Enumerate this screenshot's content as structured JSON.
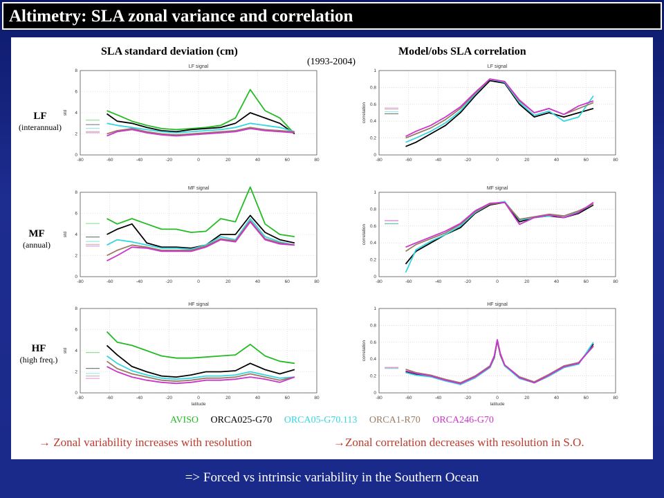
{
  "title": "Altimetry: SLA zonal variance and correlation",
  "left_title": "SLA standard deviation (cm)",
  "right_title": "Model/obs SLA correlation",
  "period": "(1993-2004)",
  "rows": [
    {
      "label": "LF",
      "sub": "(interannual)"
    },
    {
      "label": "MF",
      "sub": "(annual)"
    },
    {
      "label": "HF",
      "sub": "(high freq.)"
    }
  ],
  "legend": [
    {
      "name": "AVISO",
      "color": "#22bb22"
    },
    {
      "name": "ORCA025-G70",
      "color": "#000000"
    },
    {
      "name": "ORCA05-G70.113",
      "color": "#33d6e0"
    },
    {
      "name": "ORCA1-R70",
      "color": "#9a7b62"
    },
    {
      "name": "ORCA246-G70",
      "color": "#cc33cc"
    }
  ],
  "note_left": "→ Zonal variability increases with resolution",
  "note_right": "→Zonal correlation decreases with resolution in S.O.",
  "conclusion": "=> Forced vs intrinsic variability in the Southern Ocean",
  "chart_data": [
    {
      "type": "line",
      "title": "LF signal",
      "xlabel": "",
      "ylabel": "std",
      "xlim": [
        -80,
        80
      ],
      "ylim": [
        0,
        8
      ],
      "xticks": [
        -80,
        -60,
        -40,
        -20,
        0,
        20,
        40,
        60,
        80
      ],
      "yticks": [
        0,
        2,
        4,
        6,
        8
      ],
      "grid": true,
      "x": [
        -62,
        -55,
        -45,
        -35,
        -25,
        -15,
        -5,
        5,
        15,
        25,
        35,
        45,
        55,
        65
      ],
      "series": [
        {
          "name": "AVISO",
          "values": [
            4.2,
            3.8,
            3.2,
            2.8,
            2.5,
            2.4,
            2.5,
            2.6,
            2.8,
            3.5,
            6.2,
            4.2,
            3.5,
            2.0
          ]
        },
        {
          "name": "ORCA025-G70",
          "values": [
            3.9,
            3.2,
            3.0,
            2.6,
            2.3,
            2.2,
            2.4,
            2.5,
            2.6,
            3.0,
            4.0,
            3.5,
            3.0,
            2.0
          ]
        },
        {
          "name": "ORCA05-G70.113",
          "values": [
            3.0,
            2.8,
            2.6,
            2.4,
            2.2,
            2.1,
            2.2,
            2.3,
            2.4,
            2.6,
            3.0,
            2.8,
            2.6,
            2.2
          ]
        },
        {
          "name": "ORCA1-R70",
          "values": [
            2.0,
            2.3,
            2.5,
            2.2,
            2.0,
            1.9,
            2.0,
            2.1,
            2.2,
            2.3,
            2.6,
            2.4,
            2.3,
            2.2
          ]
        },
        {
          "name": "ORCA246-G70",
          "values": [
            1.8,
            2.2,
            2.4,
            2.1,
            1.9,
            1.8,
            1.9,
            2.0,
            2.1,
            2.2,
            2.5,
            2.3,
            2.2,
            2.1
          ]
        }
      ]
    },
    {
      "type": "line",
      "title": "LF signal",
      "xlabel": "",
      "ylabel": "correlation",
      "xlim": [
        -80,
        80
      ],
      "ylim": [
        0,
        1
      ],
      "xticks": [
        -80,
        -60,
        -40,
        -20,
        0,
        20,
        40,
        60,
        80
      ],
      "yticks": [
        0,
        0.2,
        0.4,
        0.6,
        0.8,
        1
      ],
      "grid": true,
      "x": [
        -62,
        -55,
        -45,
        -35,
        -25,
        -15,
        -5,
        5,
        15,
        25,
        35,
        45,
        55,
        65
      ],
      "series": [
        {
          "name": "ORCA025-G70",
          "values": [
            0.1,
            0.15,
            0.25,
            0.35,
            0.5,
            0.7,
            0.88,
            0.85,
            0.6,
            0.45,
            0.5,
            0.45,
            0.5,
            0.55
          ]
        },
        {
          "name": "ORCA05-G70.113",
          "values": [
            0.15,
            0.2,
            0.28,
            0.38,
            0.52,
            0.72,
            0.9,
            0.86,
            0.62,
            0.47,
            0.52,
            0.4,
            0.45,
            0.7
          ]
        },
        {
          "name": "ORCA1-R70",
          "values": [
            0.2,
            0.25,
            0.32,
            0.42,
            0.55,
            0.73,
            0.9,
            0.87,
            0.64,
            0.5,
            0.55,
            0.48,
            0.55,
            0.62
          ]
        },
        {
          "name": "ORCA246-G70",
          "values": [
            0.22,
            0.28,
            0.35,
            0.45,
            0.57,
            0.74,
            0.9,
            0.87,
            0.65,
            0.5,
            0.55,
            0.48,
            0.58,
            0.64
          ]
        }
      ]
    },
    {
      "type": "line",
      "title": "MF signal",
      "xlabel": "",
      "ylabel": "std",
      "xlim": [
        -80,
        80
      ],
      "ylim": [
        0,
        8
      ],
      "xticks": [
        -80,
        -60,
        -40,
        -20,
        0,
        20,
        40,
        60,
        80
      ],
      "yticks": [
        0,
        2,
        4,
        6,
        8
      ],
      "grid": true,
      "x": [
        -62,
        -55,
        -45,
        -35,
        -25,
        -15,
        -5,
        5,
        15,
        25,
        35,
        45,
        55,
        65
      ],
      "series": [
        {
          "name": "AVISO",
          "values": [
            5.5,
            5.0,
            5.5,
            5.0,
            4.5,
            4.5,
            4.2,
            4.3,
            5.5,
            5.2,
            8.5,
            5.0,
            4.0,
            3.8
          ]
        },
        {
          "name": "ORCA025-G70",
          "values": [
            4.0,
            4.5,
            5.0,
            3.2,
            2.8,
            2.8,
            2.7,
            3.0,
            4.0,
            4.0,
            5.8,
            4.2,
            3.5,
            3.2
          ]
        },
        {
          "name": "ORCA05-G70.113",
          "values": [
            3.0,
            3.5,
            3.3,
            3.0,
            2.7,
            2.7,
            2.6,
            3.0,
            3.8,
            3.5,
            5.5,
            3.8,
            3.3,
            3.0
          ]
        },
        {
          "name": "ORCA1-R70",
          "values": [
            2.0,
            2.5,
            3.0,
            2.8,
            2.5,
            2.5,
            2.5,
            2.9,
            3.6,
            3.4,
            5.3,
            3.6,
            3.2,
            3.0
          ]
        },
        {
          "name": "ORCA246-G70",
          "values": [
            1.5,
            2.0,
            2.8,
            2.7,
            2.4,
            2.4,
            2.4,
            2.8,
            3.5,
            3.3,
            5.2,
            3.5,
            3.1,
            3.0
          ]
        }
      ]
    },
    {
      "type": "line",
      "title": "MF signal",
      "xlabel": "",
      "ylabel": "correlation",
      "xlim": [
        -80,
        80
      ],
      "ylim": [
        0,
        1
      ],
      "xticks": [
        -80,
        -60,
        -40,
        -20,
        0,
        20,
        40,
        60,
        80
      ],
      "yticks": [
        0,
        0.2,
        0.4,
        0.6,
        0.8,
        1
      ],
      "grid": true,
      "x": [
        -62,
        -55,
        -45,
        -35,
        -25,
        -15,
        -5,
        5,
        15,
        25,
        35,
        45,
        55,
        65
      ],
      "series": [
        {
          "name": "ORCA025-G70",
          "values": [
            0.15,
            0.3,
            0.4,
            0.5,
            0.58,
            0.75,
            0.85,
            0.88,
            0.65,
            0.7,
            0.72,
            0.7,
            0.75,
            0.85
          ]
        },
        {
          "name": "ORCA05-G70.113",
          "values": [
            0.05,
            0.32,
            0.42,
            0.5,
            0.6,
            0.76,
            0.86,
            0.89,
            0.67,
            0.7,
            0.72,
            0.72,
            0.77,
            0.86
          ]
        },
        {
          "name": "ORCA1-R70",
          "values": [
            0.3,
            0.38,
            0.45,
            0.52,
            0.62,
            0.77,
            0.86,
            0.88,
            0.68,
            0.71,
            0.74,
            0.72,
            0.78,
            0.86
          ]
        },
        {
          "name": "ORCA246-G70",
          "values": [
            0.35,
            0.4,
            0.47,
            0.54,
            0.63,
            0.78,
            0.87,
            0.88,
            0.62,
            0.7,
            0.73,
            0.7,
            0.76,
            0.88
          ]
        }
      ]
    },
    {
      "type": "line",
      "title": "HF signal",
      "xlabel": "latitude",
      "ylabel": "std",
      "xlim": [
        -80,
        80
      ],
      "ylim": [
        0,
        8
      ],
      "xticks": [
        -80,
        -60,
        -40,
        -20,
        0,
        20,
        40,
        60,
        80
      ],
      "yticks": [
        0,
        2,
        4,
        6,
        8
      ],
      "grid": true,
      "x": [
        -62,
        -55,
        -45,
        -35,
        -25,
        -15,
        -5,
        5,
        15,
        25,
        35,
        45,
        55,
        65
      ],
      "series": [
        {
          "name": "AVISO",
          "values": [
            5.8,
            4.8,
            4.5,
            4.0,
            3.5,
            3.3,
            3.3,
            3.4,
            3.5,
            3.6,
            4.6,
            3.5,
            3.0,
            2.8
          ]
        },
        {
          "name": "ORCA025-G70",
          "values": [
            4.5,
            3.6,
            2.5,
            2.0,
            1.6,
            1.5,
            1.7,
            2.0,
            2.0,
            2.1,
            2.8,
            2.2,
            1.8,
            2.2
          ]
        },
        {
          "name": "ORCA05-G70.113",
          "values": [
            3.5,
            2.8,
            2.1,
            1.7,
            1.4,
            1.3,
            1.4,
            1.6,
            1.6,
            1.7,
            2.0,
            1.7,
            1.4,
            1.5
          ]
        },
        {
          "name": "ORCA1-R70",
          "values": [
            3.0,
            2.3,
            1.8,
            1.5,
            1.2,
            1.1,
            1.2,
            1.4,
            1.4,
            1.5,
            1.8,
            1.5,
            1.2,
            1.5
          ]
        },
        {
          "name": "ORCA246-G70",
          "values": [
            2.5,
            2.0,
            1.5,
            1.2,
            1.0,
            0.9,
            1.0,
            1.2,
            1.2,
            1.3,
            1.5,
            1.3,
            1.0,
            1.5
          ]
        }
      ]
    },
    {
      "type": "line",
      "title": "HF signal",
      "xlabel": "latitude",
      "ylabel": "correlation",
      "xlim": [
        -80,
        80
      ],
      "ylim": [
        0,
        1
      ],
      "xticks": [
        -80,
        -60,
        -40,
        -20,
        0,
        20,
        40,
        60,
        80
      ],
      "yticks": [
        0,
        0.2,
        0.4,
        0.6,
        0.8,
        1
      ],
      "grid": true,
      "x": [
        -62,
        -55,
        -45,
        -35,
        -25,
        -15,
        -5,
        -2,
        0,
        2,
        5,
        15,
        25,
        35,
        45,
        55,
        65
      ],
      "series": [
        {
          "name": "ORCA025-G70",
          "values": [
            0.25,
            0.22,
            0.2,
            0.15,
            0.1,
            0.18,
            0.3,
            0.42,
            0.62,
            0.45,
            0.32,
            0.18,
            0.12,
            0.2,
            0.3,
            0.35,
            0.58
          ]
        },
        {
          "name": "ORCA05-G70.113",
          "values": [
            0.24,
            0.21,
            0.19,
            0.14,
            0.1,
            0.18,
            0.3,
            0.43,
            0.63,
            0.46,
            0.32,
            0.17,
            0.12,
            0.2,
            0.3,
            0.34,
            0.6
          ]
        },
        {
          "name": "ORCA1-R70",
          "values": [
            0.28,
            0.24,
            0.21,
            0.16,
            0.12,
            0.2,
            0.32,
            0.44,
            0.62,
            0.46,
            0.33,
            0.19,
            0.13,
            0.22,
            0.32,
            0.36,
            0.55
          ]
        },
        {
          "name": "ORCA246-G70",
          "values": [
            0.26,
            0.23,
            0.2,
            0.15,
            0.11,
            0.19,
            0.31,
            0.44,
            0.63,
            0.47,
            0.33,
            0.18,
            0.12,
            0.21,
            0.31,
            0.35,
            0.56
          ]
        }
      ]
    }
  ]
}
